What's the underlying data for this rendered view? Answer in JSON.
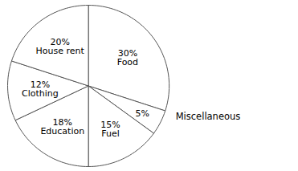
{
  "chart_data": {
    "type": "pie",
    "categories": [
      "Food",
      "Miscellaneous",
      "Fuel",
      "Education",
      "Clothing",
      "House rent"
    ],
    "values": [
      30,
      5,
      15,
      18,
      12,
      20
    ],
    "value_labels": [
      "30%",
      "5%",
      "15%",
      "18%",
      "12%",
      "20%"
    ],
    "colors": [
      "#ffffff",
      "#ffffff",
      "#ffffff",
      "#ffffff",
      "#ffffff",
      "#ffffff"
    ]
  }
}
